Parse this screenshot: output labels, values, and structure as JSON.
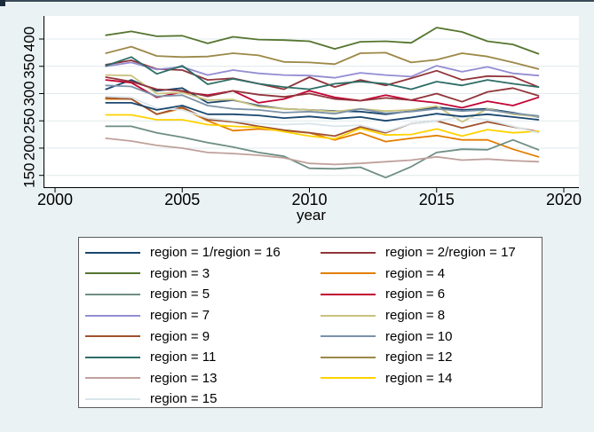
{
  "figure": {
    "background_color": "#eaf2f3",
    "plot_background": "#ffffff",
    "gridline_color": "#dfe9ec",
    "axis_color": "#000000"
  },
  "chart_data": {
    "type": "line",
    "title": "",
    "xlabel": "year",
    "ylabel": "",
    "xlim": [
      2000,
      2020
    ],
    "x_ticks": [
      2000,
      2005,
      2010,
      2015,
      2020
    ],
    "y_ticks": [
      150,
      200,
      250,
      300,
      350,
      400
    ],
    "grid": true,
    "legend_position": "bottom",
    "x": [
      2002,
      2003,
      2004,
      2005,
      2006,
      2007,
      2008,
      2009,
      2010,
      2011,
      2012,
      2013,
      2014,
      2015,
      2016,
      2017,
      2018,
      2019
    ],
    "series": [
      {
        "name": "region = 1",
        "color": "#1a476f",
        "values": [
          308,
          325,
          305,
          310,
          283,
          288,
          278,
          272,
          270,
          268,
          267,
          262,
          268,
          275,
          270,
          272,
          265,
          257
        ]
      },
      {
        "name": "region = 2",
        "color": "#90353b",
        "values": [
          353,
          361,
          345,
          343,
          325,
          328,
          318,
          308,
          330,
          312,
          325,
          315,
          328,
          342,
          325,
          332,
          331,
          312
        ]
      },
      {
        "name": "region = 3",
        "color": "#55752f",
        "values": [
          407,
          414,
          405,
          406,
          392,
          404,
          399,
          398,
          396,
          382,
          395,
          396,
          393,
          421,
          413,
          396,
          390,
          373
        ]
      },
      {
        "name": "region = 4",
        "color": "#e37e00",
        "values": [
          290,
          290,
          262,
          273,
          250,
          232,
          235,
          232,
          228,
          215,
          228,
          212,
          218,
          223,
          215,
          215,
          198,
          184
        ]
      },
      {
        "name": "region = 5",
        "color": "#6e8e84",
        "values": [
          240,
          240,
          228,
          220,
          210,
          202,
          192,
          185,
          163,
          162,
          165,
          146,
          166,
          192,
          198,
          197,
          215,
          197
        ]
      },
      {
        "name": "region = 6",
        "color": "#c10534",
        "values": [
          325,
          320,
          293,
          303,
          297,
          305,
          283,
          290,
          305,
          293,
          287,
          297,
          288,
          283,
          274,
          286,
          278,
          293
        ]
      },
      {
        "name": "region = 7",
        "color": "#938dd2",
        "values": [
          350,
          357,
          344,
          349,
          334,
          343,
          337,
          334,
          333,
          329,
          338,
          334,
          331,
          351,
          340,
          349,
          337,
          333
        ]
      },
      {
        "name": "region = 8",
        "color": "#cac27e",
        "values": [
          334,
          333,
          300,
          302,
          288,
          289,
          276,
          272,
          270,
          267,
          272,
          268,
          270,
          277,
          248,
          272,
          262,
          258
        ]
      },
      {
        "name": "region = 9",
        "color": "#a0522d",
        "values": [
          292,
          290,
          262,
          275,
          252,
          248,
          240,
          233,
          228,
          222,
          239,
          228,
          245,
          250,
          237,
          248,
          239,
          230
        ]
      },
      {
        "name": "region = 10",
        "color": "#7b92a8",
        "values": [
          315,
          313,
          295,
          297,
          278,
          272,
          270,
          265,
          267,
          263,
          272,
          264,
          267,
          272,
          268,
          270,
          264,
          259
        ]
      },
      {
        "name": "region = 11",
        "color": "#2d6d66",
        "values": [
          351,
          367,
          336,
          351,
          317,
          327,
          318,
          312,
          308,
          318,
          322,
          318,
          308,
          322,
          315,
          325,
          318,
          312
        ]
      },
      {
        "name": "region = 12",
        "color": "#9c8847",
        "values": [
          374,
          386,
          369,
          367,
          368,
          374,
          370,
          358,
          357,
          354,
          374,
          375,
          357,
          362,
          374,
          368,
          357,
          345
        ]
      },
      {
        "name": "region = 13",
        "color": "#bfa19c",
        "values": [
          218,
          213,
          205,
          200,
          192,
          190,
          187,
          182,
          172,
          170,
          172,
          175,
          178,
          184,
          178,
          180,
          177,
          175
        ]
      },
      {
        "name": "region = 14",
        "color": "#ffd200",
        "values": [
          261,
          261,
          252,
          252,
          243,
          240,
          238,
          230,
          222,
          217,
          236,
          224,
          225,
          235,
          222,
          234,
          228,
          231
        ]
      },
      {
        "name": "region = 15",
        "color": "#d9e6eb",
        "values": [
          295,
          293,
          273,
          270,
          255,
          250,
          245,
          243,
          245,
          240,
          242,
          230,
          245,
          250,
          257,
          252,
          240,
          228
        ]
      },
      {
        "name": "region = 16",
        "color": "#1a476f",
        "values": [
          283,
          283,
          270,
          278,
          262,
          262,
          260,
          255,
          258,
          254,
          257,
          250,
          256,
          263,
          258,
          262,
          257,
          252
        ]
      },
      {
        "name": "region = 17",
        "color": "#90353b",
        "values": [
          330,
          322,
          308,
          305,
          295,
          305,
          298,
          294,
          300,
          290,
          287,
          292,
          288,
          300,
          285,
          303,
          310,
          296
        ]
      }
    ]
  },
  "legend": {
    "rows": [
      [
        {
          "label": "region = 1/region = 16",
          "color": "#1a476f"
        },
        {
          "label": "region = 2/region = 17",
          "color": "#90353b"
        }
      ],
      [
        {
          "label": "region = 3",
          "color": "#55752f"
        },
        {
          "label": "region = 4",
          "color": "#e37e00"
        }
      ],
      [
        {
          "label": "region = 5",
          "color": "#6e8e84"
        },
        {
          "label": "region = 6",
          "color": "#c10534"
        }
      ],
      [
        {
          "label": "region = 7",
          "color": "#938dd2"
        },
        {
          "label": "region = 8",
          "color": "#cac27e"
        }
      ],
      [
        {
          "label": "region = 9",
          "color": "#a0522d"
        },
        {
          "label": "region = 10",
          "color": "#7b92a8"
        }
      ],
      [
        {
          "label": "region = 11",
          "color": "#2d6d66"
        },
        {
          "label": "region = 12",
          "color": "#9c8847"
        }
      ],
      [
        {
          "label": "region = 13",
          "color": "#bfa19c"
        },
        {
          "label": "region = 14",
          "color": "#ffd200"
        }
      ],
      [
        {
          "label": "region = 15",
          "color": "#d9e6eb"
        }
      ]
    ]
  }
}
